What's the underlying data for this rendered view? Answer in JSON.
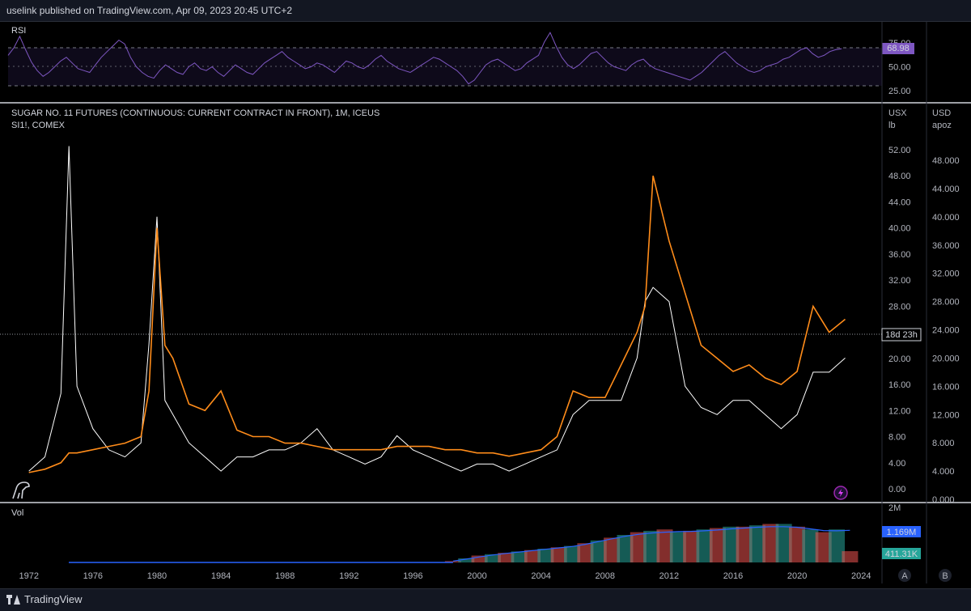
{
  "header": {
    "publish_text": "uselink published on TradingView.com, Apr 09, 2023 20:45 UTC+2"
  },
  "footer": {
    "brand": "TradingView"
  },
  "colors": {
    "sugar": "#ff8c1a",
    "silver": "#ffffff",
    "rsi": "#7e57c2",
    "vol_ma": "#2962ff",
    "vol_up": "#26a69a",
    "vol_down": "#ef5350",
    "bg": "#000000",
    "grid": "#2a2e39"
  },
  "rsi_panel": {
    "label": "RSI",
    "ticks": [
      "75.00",
      "50.00",
      "25.00"
    ],
    "current": "68.98",
    "series": [
      62,
      70,
      82,
      68,
      55,
      46,
      40,
      44,
      50,
      56,
      60,
      54,
      48,
      46,
      44,
      52,
      60,
      66,
      72,
      78,
      74,
      60,
      50,
      44,
      40,
      38,
      46,
      52,
      48,
      44,
      42,
      50,
      54,
      48,
      46,
      50,
      44,
      40,
      46,
      52,
      48,
      44,
      42,
      48,
      54,
      58,
      62,
      66,
      60,
      56,
      52,
      48,
      50,
      54,
      52,
      48,
      44,
      50,
      56,
      54,
      50,
      48,
      52,
      58,
      62,
      56,
      52,
      48,
      46,
      44,
      48,
      52,
      56,
      60,
      58,
      54,
      50,
      46,
      40,
      32,
      36,
      44,
      52,
      56,
      58,
      54,
      50,
      46,
      48,
      54,
      58,
      62,
      76,
      86,
      72,
      60,
      52,
      48,
      52,
      58,
      64,
      66,
      60,
      54,
      50,
      48,
      46,
      52,
      56,
      58,
      52,
      48,
      46,
      44,
      42,
      40,
      38,
      36,
      40,
      44,
      50,
      56,
      62,
      66,
      60,
      54,
      50,
      46,
      44,
      46,
      50,
      52,
      54,
      58,
      60,
      64,
      68,
      70,
      64,
      60,
      62,
      66,
      68,
      69
    ]
  },
  "main_panel": {
    "title": "SUGAR NO. 11 FUTURES (CONTINUOUS: CURRENT CONTRACT IN FRONT), 1M, ICEUS",
    "subtitle": "SI1!, COMEX",
    "left_unit_1": "USX",
    "left_unit_2": "lb",
    "right_unit_1": "USD",
    "right_unit_2": "apoz",
    "countdown": "18d 23h"
  },
  "volume_panel": {
    "label": "Vol",
    "top_tick": "2M",
    "ma_value": "1.169M",
    "vol_value": "411.31K"
  },
  "axis_buttons": {
    "a": "A",
    "b": "B"
  },
  "chart_data": {
    "type": "line",
    "x": [
      1972,
      1973,
      1974,
      1974.5,
      1975,
      1976,
      1977,
      1978,
      1979,
      1979.5,
      1980,
      1980.5,
      1981,
      1982,
      1983,
      1984,
      1985,
      1986,
      1987,
      1988,
      1989,
      1990,
      1991,
      1992,
      1993,
      1994,
      1995,
      1996,
      1997,
      1998,
      1999,
      2000,
      2001,
      2002,
      2003,
      2004,
      2005,
      2006,
      2007,
      2008,
      2009,
      2010,
      2010.5,
      2011,
      2012,
      2013,
      2014,
      2015,
      2016,
      2017,
      2018,
      2019,
      2020,
      2021,
      2022,
      2023
    ],
    "series": [
      {
        "axis": "left",
        "values": [
          2.5,
          3,
          4,
          5.5,
          5.5,
          6,
          6.5,
          7,
          8,
          15,
          40,
          22,
          20,
          13,
          12,
          15,
          9,
          8,
          8,
          7,
          7,
          6.5,
          6,
          6,
          6,
          6,
          6.5,
          6.5,
          6.5,
          6,
          6,
          5.5,
          5.5,
          5,
          5.5,
          6,
          8,
          15,
          14,
          14,
          19,
          24,
          28,
          48,
          38,
          30,
          22,
          20,
          18,
          19,
          17,
          16,
          18,
          28,
          24,
          26
        ]
      },
      {
        "axis": "right",
        "values": [
          4,
          6,
          15,
          50,
          16,
          10,
          7,
          6,
          8,
          22,
          40,
          14,
          12,
          8,
          6,
          4,
          6,
          6,
          7,
          7,
          8,
          10,
          7,
          6,
          5,
          6,
          9,
          7,
          6,
          5,
          4,
          5,
          5,
          4,
          5,
          6,
          7,
          12,
          14,
          14,
          14,
          20,
          28,
          30,
          28,
          16,
          13,
          12,
          14,
          14,
          12,
          10,
          12,
          18,
          18,
          20
        ]
      }
    ],
    "left_axis": {
      "ticks": [
        "52.00",
        "48.00",
        "44.00",
        "40.00",
        "36.00",
        "32.00",
        "28.00",
        "20.00",
        "16.00",
        "12.00",
        "8.00",
        "4.00",
        "0.00"
      ],
      "ylim": [
        0,
        52
      ]
    },
    "right_axis": {
      "ticks": [
        "48.000",
        "44.000",
        "40.000",
        "36.000",
        "32.000",
        "28.000",
        "24.000",
        "20.000",
        "16.000",
        "12.000",
        "8.000",
        "4.000",
        "0.000"
      ],
      "ylim": [
        0,
        48
      ]
    },
    "x_ticks": [
      "1972",
      "1976",
      "1980",
      "1984",
      "1988",
      "1992",
      "1996",
      "2000",
      "2004",
      "2008",
      "2012",
      "2016",
      "2020",
      "2024"
    ],
    "volume": {
      "start_year": 1998.5,
      "values": [
        0.05,
        0.15,
        0.25,
        0.3,
        0.35,
        0.4,
        0.45,
        0.5,
        0.55,
        0.6,
        0.7,
        0.8,
        0.9,
        1.0,
        1.1,
        1.15,
        1.2,
        1.1,
        1.15,
        1.2,
        1.25,
        1.3,
        1.3,
        1.35,
        1.4,
        1.4,
        1.3,
        1.2,
        1.1,
        1.2,
        0.41
      ],
      "ma": [
        0.05,
        0.12,
        0.2,
        0.27,
        0.33,
        0.38,
        0.43,
        0.48,
        0.53,
        0.58,
        0.66,
        0.76,
        0.86,
        0.95,
        1.02,
        1.07,
        1.1,
        1.12,
        1.13,
        1.15,
        1.18,
        1.22,
        1.25,
        1.28,
        1.3,
        1.3,
        1.28,
        1.22,
        1.16,
        1.15,
        1.169
      ]
    }
  }
}
